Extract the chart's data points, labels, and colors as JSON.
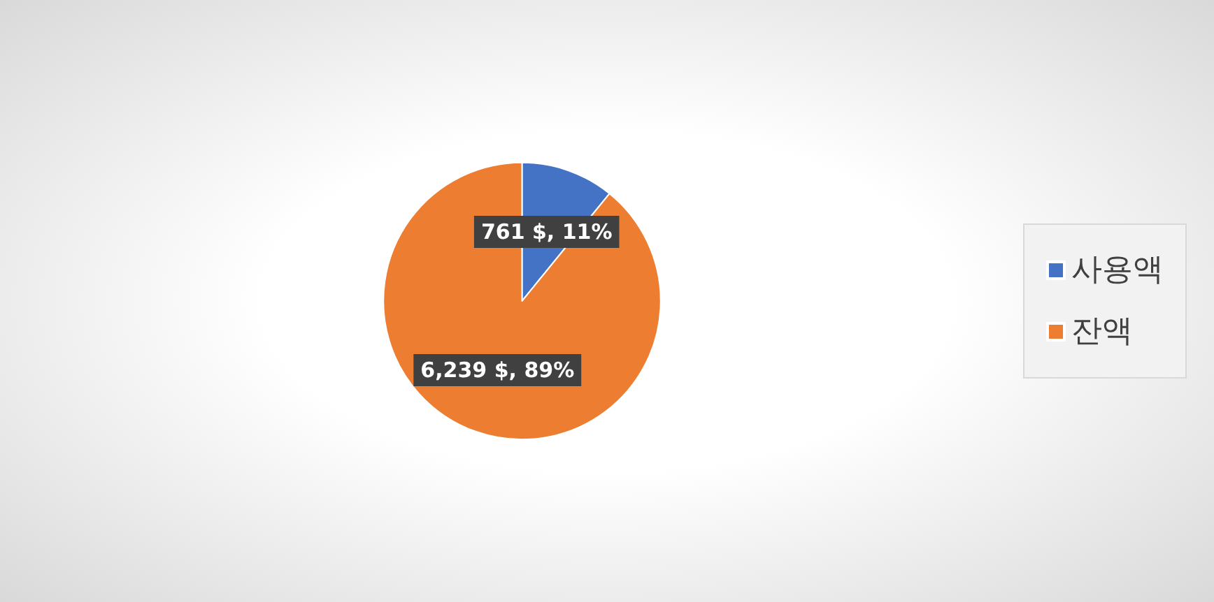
{
  "chart_data": {
    "type": "pie",
    "categories": [
      "사용액",
      "잔액"
    ],
    "values": [
      761,
      6239
    ],
    "colors": [
      "#4472c4",
      "#ed7d31"
    ],
    "value_labels": [
      "761 $, 11%",
      "6,239 $, 89%"
    ],
    "legend": "right"
  }
}
